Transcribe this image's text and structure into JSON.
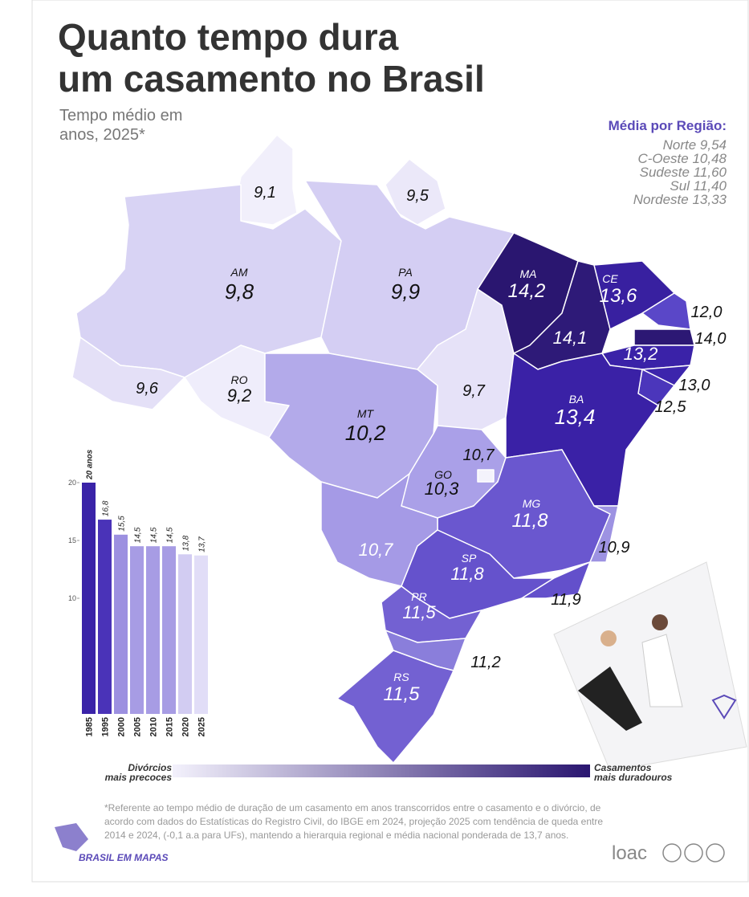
{
  "header": {
    "title_line1": "Quanto tempo dura",
    "title_line2": "um casamento no Brasil",
    "subtitle_line1": "Tempo médio em",
    "subtitle_line2": "anos, 2025*"
  },
  "regions": {
    "title": "Média por Região:",
    "items": [
      "Norte 9,54",
      "C-Oeste 10,48",
      "Sudeste 11,60",
      "Sul 11,40",
      "Nordeste 13,33"
    ]
  },
  "map": {
    "states": [
      {
        "value": "9,1"
      },
      {
        "value": "9,5"
      },
      {
        "abbr": "AM",
        "value": "9,8"
      },
      {
        "abbr": "PA",
        "value": "9,9"
      },
      {
        "value": "9,6"
      },
      {
        "abbr": "RO",
        "value": "9,2"
      },
      {
        "abbr": "MT",
        "value": "10,2"
      },
      {
        "value": "9,7"
      },
      {
        "abbr": "MA",
        "value": "14,2"
      },
      {
        "value": "14,1"
      },
      {
        "abbr": "CE",
        "value": "13,6"
      },
      {
        "value": "12,0"
      },
      {
        "value": "14,0"
      },
      {
        "value": "13,2"
      },
      {
        "value": "13,0"
      },
      {
        "value": "12,5"
      },
      {
        "abbr": "BA",
        "value": "13,4"
      },
      {
        "value": "10,7"
      },
      {
        "abbr": "GO",
        "value": "10,3"
      },
      {
        "abbr": "MG",
        "value": "11,8"
      },
      {
        "value": "10,7"
      },
      {
        "value": "10,9"
      },
      {
        "abbr": "SP",
        "value": "11,8"
      },
      {
        "value": "11,9"
      },
      {
        "abbr": "PR",
        "value": "11,5"
      },
      {
        "value": "11,2"
      },
      {
        "abbr": "RS",
        "value": "11,5"
      }
    ]
  },
  "chart_data": {
    "type": "bar",
    "categories": [
      "1985",
      "1995",
      "2000",
      "2005",
      "2010",
      "2015",
      "2020",
      "2025"
    ],
    "values": [
      20,
      16.8,
      15.5,
      14.5,
      14.5,
      14.5,
      13.8,
      13.7
    ],
    "value_labels": [
      "20 anos",
      "16,8",
      "15,5",
      "14,5",
      "14,5",
      "14,5",
      "13,8",
      "13,7"
    ],
    "colors": [
      "#3a23a8",
      "#4a33b8",
      "#9c90e0",
      "#a79ce4",
      "#a79ce4",
      "#a79ce4",
      "#d2ccf2",
      "#e1ddf7"
    ],
    "ylim": [
      0,
      20
    ],
    "yticks": [
      10,
      15,
      20
    ]
  },
  "legend": {
    "low_line1": "Divórcios",
    "low_line2": "mais precoces",
    "high_line1": "Casamentos",
    "high_line2": "mais duradouros"
  },
  "footnote": [
    "*Referente ao tempo médio de duração de um casamento em anos transcorridos entre o casamento e o divórcio, de",
    "acordo com dados do Estatísticas do Registro Civil, do IBGE em 2024, projeção 2025 com tendência de queda entre",
    "2014 e 2024, (-0,1 a.a para UFs), mantendo a hierarquia regional e média nacional ponderada de 13,7 anos."
  ],
  "brand": "BRASIL EM MAPAS",
  "logo": "loac"
}
